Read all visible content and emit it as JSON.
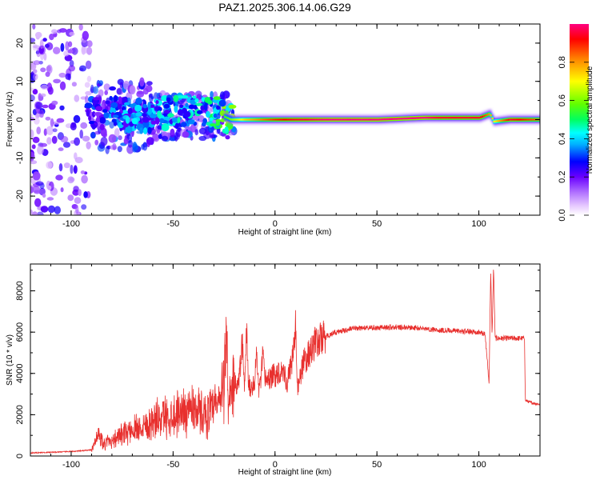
{
  "chart_data": [
    {
      "type": "heatmap",
      "title": "PAZ1.2025.306.14.06.G29",
      "xlabel": "Height of straight line (km)",
      "ylabel": "Frequency (Hz)",
      "xlim": [
        -120,
        130
      ],
      "ylim": [
        -25,
        25
      ],
      "xticks": [
        -100,
        -50,
        0,
        50,
        100
      ],
      "yticks": [
        -20,
        -10,
        0,
        10,
        20
      ],
      "ridge": {
        "description_free": true,
        "x": [
          -90,
          -80,
          -70,
          -60,
          -50,
          -40,
          -30,
          -22,
          -15,
          -10,
          -5,
          0,
          10,
          25,
          50,
          73,
          80,
          90,
          100,
          105,
          107,
          115,
          130
        ],
        "freq": [
          2,
          2,
          1,
          1,
          2,
          3,
          2,
          0,
          0,
          0,
          0,
          0,
          0,
          0,
          0,
          0.5,
          0.5,
          0.5,
          0.5,
          1.5,
          -0.5,
          0,
          0
        ],
        "amplitude": [
          0.3,
          0.35,
          0.4,
          0.4,
          0.45,
          0.45,
          0.5,
          0.6,
          0.75,
          0.8,
          0.85,
          0.9,
          0.95,
          1.0,
          1.0,
          1.0,
          0.95,
          0.95,
          0.95,
          0.8,
          0.7,
          0.95,
          0.85
        ]
      },
      "colorbar": {
        "label": "Normalized spectral amplitude",
        "min": 0,
        "max": 1,
        "ticks": [
          "0.0",
          "0.2",
          "0.4",
          "0.6",
          "0.8"
        ],
        "tick_values": [
          0.0,
          0.2,
          0.4,
          0.6,
          0.8
        ]
      }
    },
    {
      "type": "line",
      "title": "",
      "xlabel": "Height of straight line (km)",
      "ylabel": "SNR (10 * v/v)",
      "xlim": [
        -120,
        130
      ],
      "ylim": [
        0,
        9300
      ],
      "xticks": [
        -100,
        -50,
        0,
        50,
        100
      ],
      "yticks": [
        0,
        2000,
        4000,
        6000,
        8000
      ],
      "color": "#e8302e",
      "series": [
        {
          "name": "SNR",
          "x": [
            -120,
            -110,
            -100,
            -95,
            -90,
            -88,
            -86,
            -85,
            -84,
            -82,
            -80,
            -75,
            -70,
            -65,
            -60,
            -55,
            -50,
            -45,
            -40,
            -35,
            -30,
            -27,
            -25,
            -24,
            -23,
            -22,
            -21,
            -20,
            -18,
            -16,
            -15,
            -14,
            -13,
            -12,
            -11,
            -10,
            -9,
            -8,
            -7,
            -6,
            -5,
            -4,
            -3,
            -2,
            -1,
            0,
            2,
            4,
            6,
            8,
            9,
            10,
            11,
            12,
            14,
            16,
            18,
            20,
            25,
            30,
            35,
            40,
            50,
            60,
            70,
            80,
            90,
            100,
            103,
            104,
            105,
            105.8,
            106.5,
            107.2,
            108,
            110,
            115,
            120,
            122.4,
            122.8,
            125,
            130
          ],
          "y": [
            150,
            180,
            220,
            250,
            300,
            650,
            1300,
            700,
            500,
            750,
            800,
            1000,
            1300,
            1500,
            1700,
            1900,
            2000,
            2200,
            2400,
            2000,
            2200,
            2700,
            3500,
            6500,
            3000,
            2500,
            2800,
            3600,
            3300,
            5500,
            3000,
            6200,
            3500,
            3300,
            3400,
            3500,
            5000,
            3200,
            3600,
            4800,
            3800,
            3700,
            3800,
            3700,
            3900,
            3900,
            4100,
            4200,
            3500,
            4500,
            5000,
            6400,
            3200,
            3800,
            4500,
            4800,
            5200,
            5500,
            5800,
            6000,
            6100,
            6200,
            6200,
            6250,
            6200,
            6100,
            6050,
            6000,
            5900,
            4800,
            3500,
            9000,
            5800,
            9200,
            5700,
            5700,
            5700,
            5700,
            5700,
            2700,
            2600,
            2500
          ]
        }
      ]
    }
  ]
}
